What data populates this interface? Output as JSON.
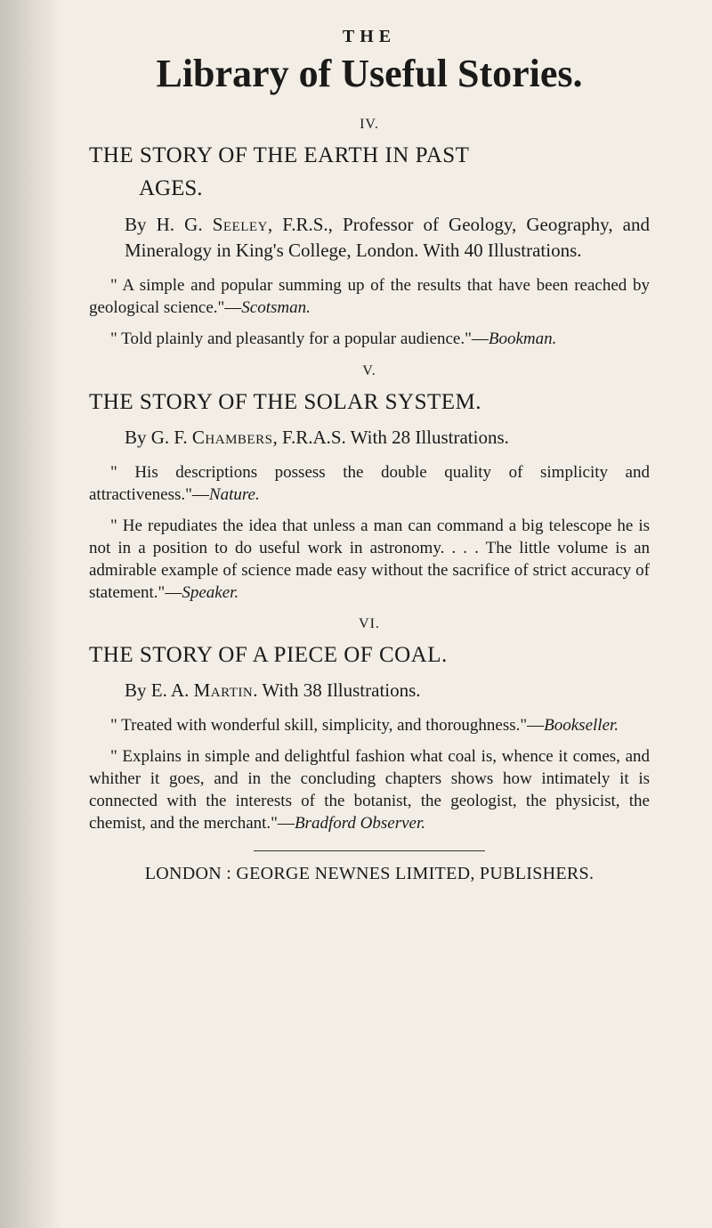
{
  "header": {
    "small": "THE",
    "title": "Library of Useful Stories."
  },
  "entries": [
    {
      "roman": "IV.",
      "title_line1": "THE STORY OF THE EARTH IN PAST",
      "title_line2": "AGES.",
      "byline_prefix": "By H. G. ",
      "byline_name": "Seeley",
      "byline_rest": ", F.R.S., Professor of Geology, Geography, and Mineralogy in King's College, London. With 40 Illustrations.",
      "quotes": [
        {
          "text": "\" A simple and popular summing up of the results that have been reached by geological science.\"—",
          "source": "Scotsman."
        },
        {
          "text": "\" Told plainly and pleasantly for a popular audience.\"—",
          "source": "Bookman."
        }
      ]
    },
    {
      "roman": "V.",
      "title_line1": "THE STORY OF THE SOLAR SYSTEM.",
      "title_line2": "",
      "byline_prefix": "By G. F. ",
      "byline_name": "Chambers",
      "byline_rest": ", F.R.A.S. With 28 Illustrations.",
      "quotes": [
        {
          "text": "\" His descriptions possess the double quality of simplicity and attractiveness.\"—",
          "source": "Nature."
        },
        {
          "text": "\" He repudiates the idea that unless a man can command a big telescope he is not in a position to do useful work in astronomy. . . . The little volume is an admirable example of science made easy without the sacrifice of strict accuracy of statement.\"—",
          "source": "Speaker."
        }
      ]
    },
    {
      "roman": "VI.",
      "title_line1": "THE STORY OF A PIECE OF COAL.",
      "title_line2": "",
      "byline_prefix": "By E. A. ",
      "byline_name": "Martin",
      "byline_rest": ". With 38 Illustrations.",
      "quotes": [
        {
          "text": "\" Treated with wonderful skill, simplicity, and thoroughness.\"—",
          "source": "Bookseller."
        },
        {
          "text": "\" Explains in simple and delightful fashion what coal is, whence it comes, and whither it goes, and in the concluding chapters shows how intimately it is connected with the interests of the botanist, the geologist, the physicist, the chemist, and the merchant.\"—",
          "source": "Bradford Observer."
        }
      ]
    }
  ],
  "footer": "LONDON : GEORGE NEWNES LIMITED, PUBLISHERS."
}
